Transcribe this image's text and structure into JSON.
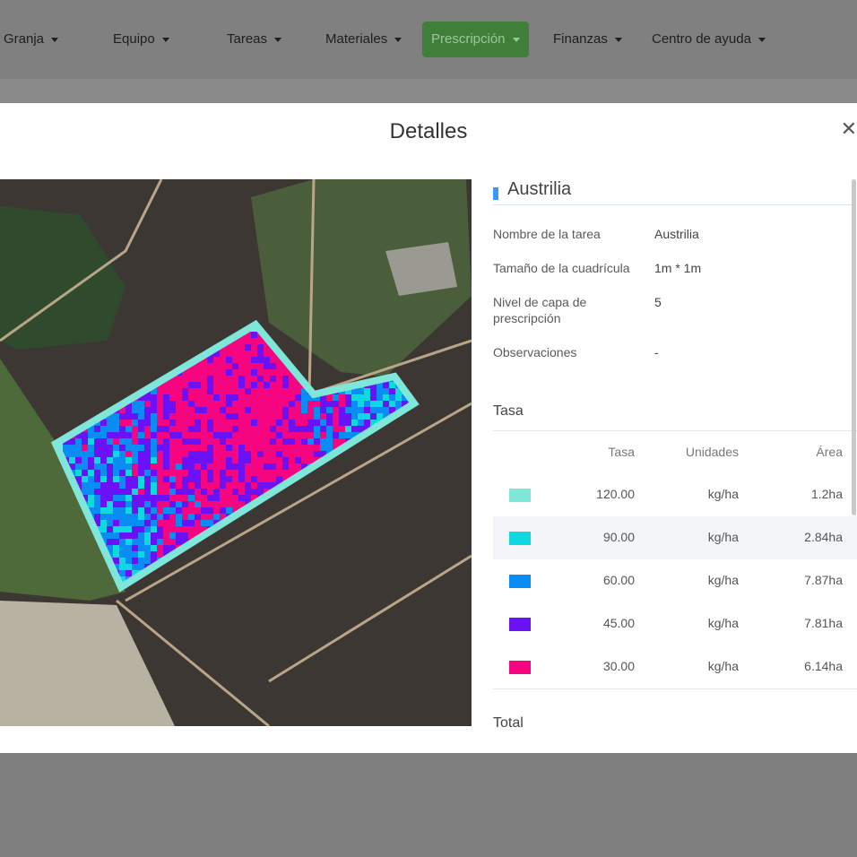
{
  "nav": {
    "items": [
      "Granja",
      "Equipo",
      "Tareas",
      "Materiales",
      "Prescripción",
      "Finanzas",
      "Centro de ayuda"
    ],
    "active": 4
  },
  "modal": {
    "title": "Detalles",
    "section_title": "Austrilia",
    "details": [
      {
        "label": "Nombre de la tarea",
        "value": "Austrilia"
      },
      {
        "label": "Tamaño de la cuadrícula",
        "value": "1m * 1m"
      },
      {
        "label": "Nivel de capa de prescripción",
        "value": "5"
      },
      {
        "label": "Observaciones",
        "value": "-"
      }
    ],
    "rate_heading": "Tasa",
    "table": {
      "headers": [
        "Tasa",
        "Unidades",
        "Área"
      ],
      "rows": [
        {
          "color": "#7fe6da",
          "cells": [
            "120.00",
            "kg/ha",
            "1.2ha"
          ]
        },
        {
          "color": "#10d8e0",
          "cells": [
            "90.00",
            "kg/ha",
            "2.84ha"
          ]
        },
        {
          "color": "#0a8cf5",
          "cells": [
            "60.00",
            "kg/ha",
            "7.87ha"
          ]
        },
        {
          "color": "#6a12f5",
          "cells": [
            "45.00",
            "kg/ha",
            "7.81ha"
          ]
        },
        {
          "color": "#f5057f",
          "cells": [
            "30.00",
            "kg/ha",
            "6.14ha"
          ]
        }
      ]
    },
    "total_heading": "Total"
  }
}
